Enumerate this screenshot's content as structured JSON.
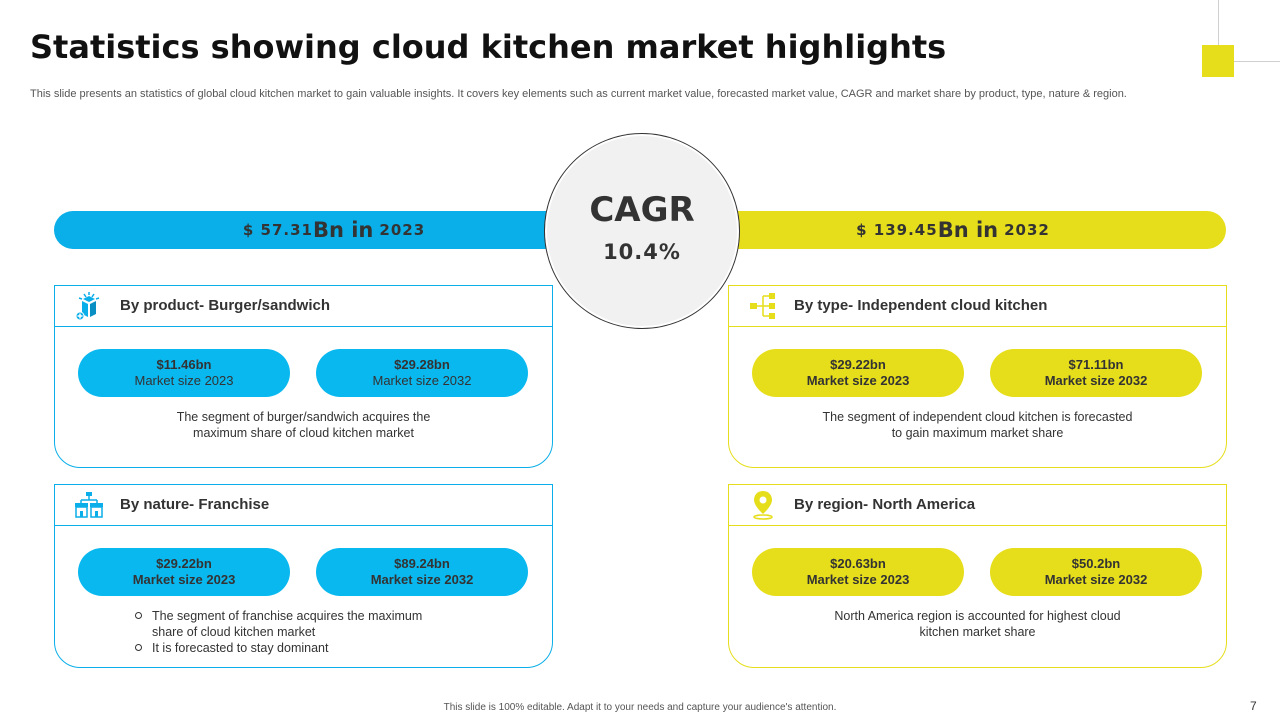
{
  "header": {
    "title": "Statistics showing cloud kitchen market highlights",
    "subtitle": "This slide presents an statistics of global cloud kitchen market to gain valuable insights. It covers key elements such as current market value, forecasted market value, CAGR and market share by product, type,  nature & region."
  },
  "summary": {
    "left": {
      "currency": "$ 57.31",
      "unit": "Bn in",
      "year": "2023"
    },
    "right": {
      "currency": "$ 139.45",
      "unit": "Bn in",
      "year": "2032"
    },
    "cagr": {
      "label": "CAGR",
      "value": "10.4%"
    }
  },
  "cards": {
    "product": {
      "title": "By product- Burger/sandwich",
      "icon": "box-icon",
      "pill1": {
        "value": "$11.46bn",
        "label": "Market size 2023"
      },
      "pill2": {
        "value": "$29.28bn",
        "label": "Market size 2032"
      },
      "desc1": "The segment of burger/sandwich  acquires the",
      "desc2": "maximum share of cloud kitchen market"
    },
    "nature": {
      "title": "By nature- Franchise",
      "icon": "franchise-stores-icon",
      "pill1": {
        "value": "$29.22bn",
        "label": "Market size 2023"
      },
      "pill2": {
        "value": "$89.24bn",
        "label": "Market size 2032"
      },
      "bullet1a": "The segment of franchise acquires the maximum",
      "bullet1b": "share of cloud kitchen market",
      "bullet2": "It is forecasted  to stay dominant"
    },
    "type": {
      "title": "By type- Independent cloud kitchen",
      "icon": "hierarchy-icon",
      "pill1": {
        "value": "$29.22bn",
        "label": "Market size 2023"
      },
      "pill2": {
        "value": "$71.11bn",
        "label": "Market size 2032"
      },
      "desc1": "The segment of independent  cloud kitchen is forecasted",
      "desc2": "to gain maximum market share"
    },
    "region": {
      "title": "By region- North America",
      "icon": "location-pin-icon",
      "pill1": {
        "value": "$20.63bn",
        "label": "Market size 2023"
      },
      "pill2": {
        "value": "$50.2bn",
        "label": "Market size 2032"
      },
      "desc1": "North America region is accounted for highest cloud",
      "desc2": "kitchen market share"
    }
  },
  "footer": {
    "note": "This slide is 100% editable. Adapt it to your needs and capture your audience's attention.",
    "page": "7"
  },
  "colors": {
    "blue": "#0aaee8",
    "yellow": "#e6de1a"
  }
}
